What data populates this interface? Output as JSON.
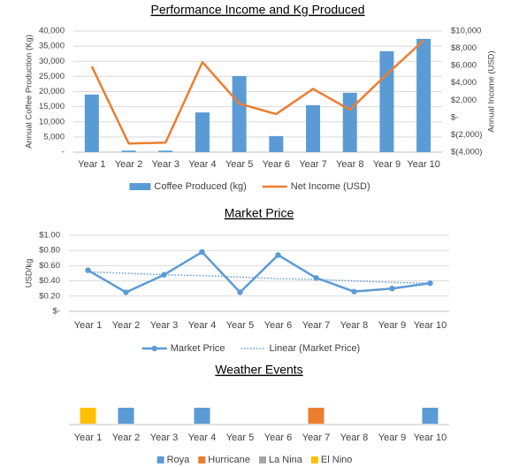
{
  "chart_data": [
    {
      "type": "combo",
      "title": "Performance Income and Kg Produced",
      "y_label": "Annual Coffee Production (Kg)",
      "y2_label": "Annual Income (USD)",
      "categories": [
        "Year 1",
        "Year 2",
        "Year 3",
        "Year 4",
        "Year 5",
        "Year 6",
        "Year 7",
        "Year 8",
        "Year 9",
        "Year 10"
      ],
      "series": [
        {
          "name": "Coffee Produced (kg)",
          "color": "#5b9bd5",
          "type": "bar",
          "values": [
            19000,
            500,
            500,
            13100,
            25100,
            5300,
            15500,
            19600,
            33300,
            37400
          ]
        },
        {
          "name": "Net Income (USD)",
          "color": "#ed7d31",
          "type": "line",
          "axis": "y2",
          "values": [
            5900,
            -3000,
            -2900,
            6400,
            1600,
            400,
            3300,
            900,
            5000,
            8900
          ]
        }
      ],
      "ylim": [
        0,
        40000
      ],
      "yticks": [
        {
          "value": 0,
          "label": "-"
        },
        {
          "value": 5000,
          "label": "5,000"
        },
        {
          "value": 10000,
          "label": "10,000"
        },
        {
          "value": 15000,
          "label": "15,000"
        },
        {
          "value": 20000,
          "label": "20,000"
        },
        {
          "value": 25000,
          "label": "25,000"
        },
        {
          "value": 30000,
          "label": "30,000"
        },
        {
          "value": 35000,
          "label": "35,000"
        },
        {
          "value": 40000,
          "label": "40,000"
        }
      ],
      "y2lim": [
        -4000,
        10000
      ],
      "y2ticks": [
        {
          "value": -4000,
          "label": "$(4,000)"
        },
        {
          "value": -2000,
          "label": "$(2,000)"
        },
        {
          "value": 0,
          "label": "$-"
        },
        {
          "value": 2000,
          "label": "$2,000"
        },
        {
          "value": 4000,
          "label": "$4,000"
        },
        {
          "value": 6000,
          "label": "$6,000"
        },
        {
          "value": 8000,
          "label": "$8,000"
        },
        {
          "value": 10000,
          "label": "$10,000"
        }
      ],
      "grid": true,
      "legend": "bottom"
    },
    {
      "type": "line",
      "title": "Market Price",
      "y_label": "USD/kg",
      "categories": [
        "Year 1",
        "Year 2",
        "Year 3",
        "Year 4",
        "Year 5",
        "Year 6",
        "Year 7",
        "Year 8",
        "Year 9",
        "Year 10"
      ],
      "series": [
        {
          "name": "Market Price",
          "color": "#5b9bd5",
          "style": "solid",
          "values": [
            0.54,
            0.25,
            0.48,
            0.78,
            0.25,
            0.74,
            0.44,
            0.26,
            0.3,
            0.37
          ]
        },
        {
          "name": "Linear (Market Price)",
          "color": "#5b9bd5",
          "style": "dotted",
          "values": [
            0.52,
            0.5,
            0.48,
            0.47,
            0.45,
            0.43,
            0.42,
            0.4,
            0.38,
            0.37
          ]
        }
      ],
      "ylim": [
        0,
        1
      ],
      "yticks": [
        {
          "value": 0,
          "label": "$-"
        },
        {
          "value": 0.2,
          "label": "$0.20"
        },
        {
          "value": 0.4,
          "label": "$0.40"
        },
        {
          "value": 0.6,
          "label": "$0.60"
        },
        {
          "value": 0.8,
          "label": "$0.80"
        },
        {
          "value": 1,
          "label": "$1.00"
        }
      ],
      "grid": true,
      "legend": "bottom"
    },
    {
      "type": "marker",
      "title": "Weather Events",
      "categories": [
        "Year 1",
        "Year 2",
        "Year 3",
        "Year 4",
        "Year 5",
        "Year 6",
        "Year 7",
        "Year 8",
        "Year 9",
        "Year 10"
      ],
      "series": [
        {
          "name": "Roya",
          "color": "#5b9bd5",
          "values": [
            null,
            1,
            null,
            1,
            null,
            null,
            null,
            null,
            null,
            1
          ]
        },
        {
          "name": "Hurricane",
          "color": "#ed7d31",
          "values": [
            null,
            null,
            null,
            null,
            null,
            null,
            1,
            null,
            null,
            null
          ]
        },
        {
          "name": "La Nina",
          "color": "#a5a5a5",
          "values": [
            null,
            null,
            null,
            null,
            null,
            null,
            null,
            null,
            null,
            null
          ]
        },
        {
          "name": "El Nino",
          "color": "#ffc000",
          "values": [
            1,
            null,
            null,
            null,
            null,
            null,
            null,
            null,
            null,
            null
          ]
        }
      ],
      "ylim": [
        0,
        2
      ],
      "grid": false,
      "legend": "bottom"
    }
  ]
}
